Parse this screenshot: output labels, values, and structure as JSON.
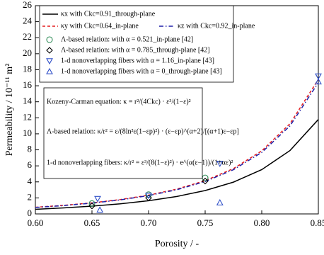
{
  "chart_data": {
    "type": "line",
    "xlabel": "Porosity / -",
    "ylabel": "Permeability / 10⁻¹¹ m²",
    "xlim": [
      0.6,
      0.85
    ],
    "xticks": [
      {
        "value": 0.6,
        "label": "0.60"
      },
      {
        "value": 0.65,
        "label": "0.65"
      },
      {
        "value": 0.7,
        "label": "0.70"
      },
      {
        "value": 0.75,
        "label": "0.75"
      },
      {
        "value": 0.8,
        "label": "0.80"
      },
      {
        "value": 0.85,
        "label": "0.85"
      }
    ],
    "ylim": [
      0,
      26
    ],
    "yticks": [
      0,
      2,
      4,
      6,
      8,
      10,
      12,
      14,
      16,
      18,
      20,
      22,
      24,
      26
    ],
    "series": [
      {
        "name": "κx with Ckc=0.91_through-plane",
        "color": "#000000",
        "style": "solid",
        "x": [
          0.6,
          0.625,
          0.65,
          0.675,
          0.7,
          0.725,
          0.75,
          0.775,
          0.8,
          0.825,
          0.85
        ],
        "values": [
          0.58,
          0.75,
          0.97,
          1.26,
          1.65,
          2.18,
          2.92,
          3.97,
          5.53,
          7.92,
          11.79
        ]
      },
      {
        "name": "κy with Ckc=0.64_in-plane",
        "color": "#e41a1c",
        "style": "dashed",
        "x": [
          0.6,
          0.625,
          0.65,
          0.675,
          0.7,
          0.725,
          0.75,
          0.775,
          0.8,
          0.825,
          0.85
        ],
        "values": [
          0.83,
          1.07,
          1.38,
          1.79,
          2.34,
          3.1,
          4.15,
          5.66,
          7.87,
          11.27,
          16.79
        ]
      },
      {
        "name": "κz with Ckc=0.92_in-plane",
        "color": "#1f1fa8",
        "style": "dashdot",
        "x": [
          0.6,
          0.625,
          0.65,
          0.675,
          0.7,
          0.725,
          0.75,
          0.775,
          0.8,
          0.825,
          0.85
        ],
        "values": [
          0.81,
          1.04,
          1.35,
          1.75,
          2.29,
          3.02,
          4.05,
          5.52,
          7.68,
          11.0,
          16.4
        ]
      },
      {
        "name": "Λ-based relation: with α = 0.521_in-plane [42]",
        "color": "#2e8b57",
        "marker": "circle",
        "x": [
          0.65,
          0.7,
          0.75
        ],
        "values": [
          1.3,
          2.4,
          4.5
        ]
      },
      {
        "name": "Λ-based relation: with α = 0.785_through-plane [42]",
        "color": "#000000",
        "marker": "diamond",
        "x": [
          0.65,
          0.7,
          0.75
        ],
        "values": [
          1.0,
          2.0,
          4.1
        ]
      },
      {
        "name": "1-d nonoverlapping fibers with α = 1.16_in-plane [43]",
        "color": "#3050c8",
        "marker": "triangle-down",
        "x": [
          0.655,
          0.7,
          0.763,
          0.85
        ],
        "values": [
          1.9,
          2.3,
          6.3,
          17.2
        ]
      },
      {
        "name": "1-d nonoverlapping fibers with α = 0_through-plane [43]",
        "color": "#3050c8",
        "marker": "triangle-up",
        "x": [
          0.657,
          0.763,
          0.85
        ],
        "values": [
          0.5,
          1.4,
          16.5
        ]
      }
    ],
    "equations": [
      "Kozeny-Carman equation: κ = r²/(4Ckc) · ε³/(1−ε)²",
      "Λ-based relation: κ/r² = ε/(8ln²ε(1−εp)²) · (ε−εp)^(α+2)/[(α+1)ε−εp]",
      "1-d nonoverlapping fibers: κ/r² = ε³/(8(1−ε)²) · e^(α(ε−1))/(1+αε)²"
    ]
  }
}
